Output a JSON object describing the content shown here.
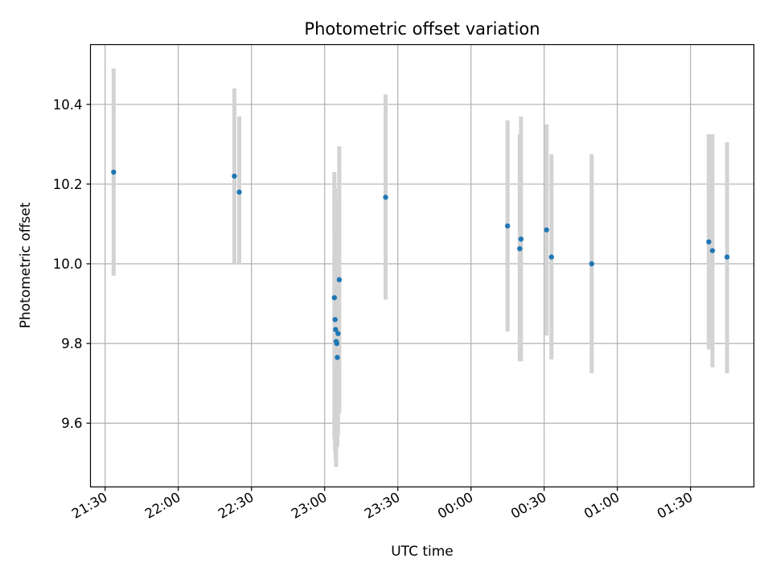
{
  "chart_data": {
    "type": "scatter",
    "title": "Photometric offset variation",
    "xlabel": "UTC time",
    "ylabel": "Photometric offset",
    "x_axis_type": "time",
    "xlim": [
      "21:24",
      "01:56"
    ],
    "ylim": [
      9.44,
      10.55
    ],
    "grid": true,
    "x_ticks": [
      "21:30",
      "22:00",
      "22:30",
      "23:00",
      "23:30",
      "00:00",
      "00:30",
      "01:00",
      "01:30"
    ],
    "y_ticks": [
      "9.6",
      "9.8",
      "10.0",
      "10.2",
      "10.4"
    ],
    "y_tick_values": [
      9.6,
      9.8,
      10.0,
      10.2,
      10.4
    ],
    "colors": {
      "points": "#1f77b4",
      "error_bars": "#d3d3d3"
    },
    "series": [
      {
        "points": [
          {
            "x": "21:33.5",
            "y": 10.23,
            "ymin": 9.97,
            "ymax": 10.49
          },
          {
            "x": "22:23",
            "y": 10.22,
            "ymin": 10.0,
            "ymax": 10.44
          },
          {
            "x": "22:25",
            "y": 10.18,
            "ymin": 10.0,
            "ymax": 10.37
          },
          {
            "x": "23:04",
            "y": 9.915,
            "ymin": 9.56,
            "ymax": 10.23
          },
          {
            "x": "23:04.3",
            "y": 9.86,
            "ymin": 9.53,
            "ymax": 10.19
          },
          {
            "x": "23:04.5",
            "y": 9.835,
            "ymin": 9.51,
            "ymax": 10.16
          },
          {
            "x": "23:04.7",
            "y": 9.805,
            "ymin": 9.49,
            "ymax": 10.12
          },
          {
            "x": "23:05",
            "y": 9.8,
            "ymin": 9.54,
            "ymax": 10.06
          },
          {
            "x": "23:05.2",
            "y": 9.765,
            "ymin": 9.54,
            "ymax": 9.99
          },
          {
            "x": "23:05.5",
            "y": 9.825,
            "ymin": 9.57,
            "ymax": 10.08
          },
          {
            "x": "23:06",
            "y": 9.96,
            "ymin": 9.625,
            "ymax": 10.295
          },
          {
            "x": "23:25",
            "y": 10.167,
            "ymin": 9.91,
            "ymax": 10.425
          },
          {
            "x": "00:15",
            "y": 10.095,
            "ymin": 9.83,
            "ymax": 10.36
          },
          {
            "x": "00:20",
            "y": 10.038,
            "ymin": 9.755,
            "ymax": 10.325
          },
          {
            "x": "00:20.5",
            "y": 10.062,
            "ymin": 9.755,
            "ymax": 10.37
          },
          {
            "x": "00:31",
            "y": 10.085,
            "ymin": 9.82,
            "ymax": 10.35
          },
          {
            "x": "00:33",
            "y": 10.017,
            "ymin": 9.76,
            "ymax": 10.275
          },
          {
            "x": "00:49.5",
            "y": 10.0,
            "ymin": 9.725,
            "ymax": 10.275
          },
          {
            "x": "01:37.5",
            "y": 10.055,
            "ymin": 9.785,
            "ymax": 10.325
          },
          {
            "x": "01:39",
            "y": 10.033,
            "ymin": 9.74,
            "ymax": 10.325
          },
          {
            "x": "01:45",
            "y": 10.017,
            "ymin": 9.725,
            "ymax": 10.305
          }
        ]
      }
    ]
  }
}
